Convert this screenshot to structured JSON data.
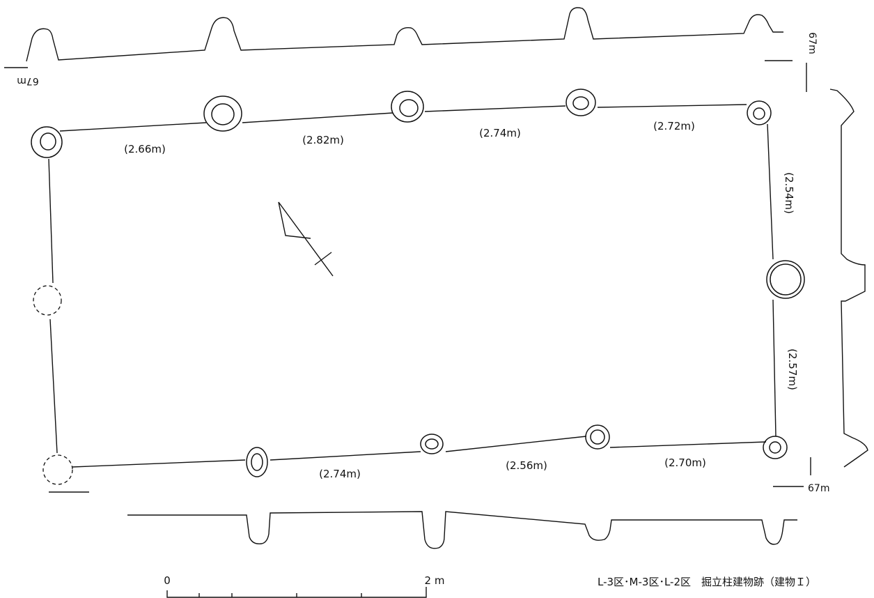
{
  "spans": {
    "north": [
      "(2.66m)",
      "(2.82m)",
      "(2.74m)",
      "(2.72m)"
    ],
    "east": [
      "(2.54m)",
      "(2.57m)"
    ],
    "south": [
      "(2.74m)",
      "(2.56m)",
      "(2.70m)"
    ]
  },
  "elevation_labels": [
    "67m",
    "67m",
    "67m"
  ],
  "scale_bar": {
    "start": "0",
    "end": "2 m"
  },
  "caption": "L-3区･M-3区･L-2区　掘立柱建物跡（建物Ｉ）"
}
